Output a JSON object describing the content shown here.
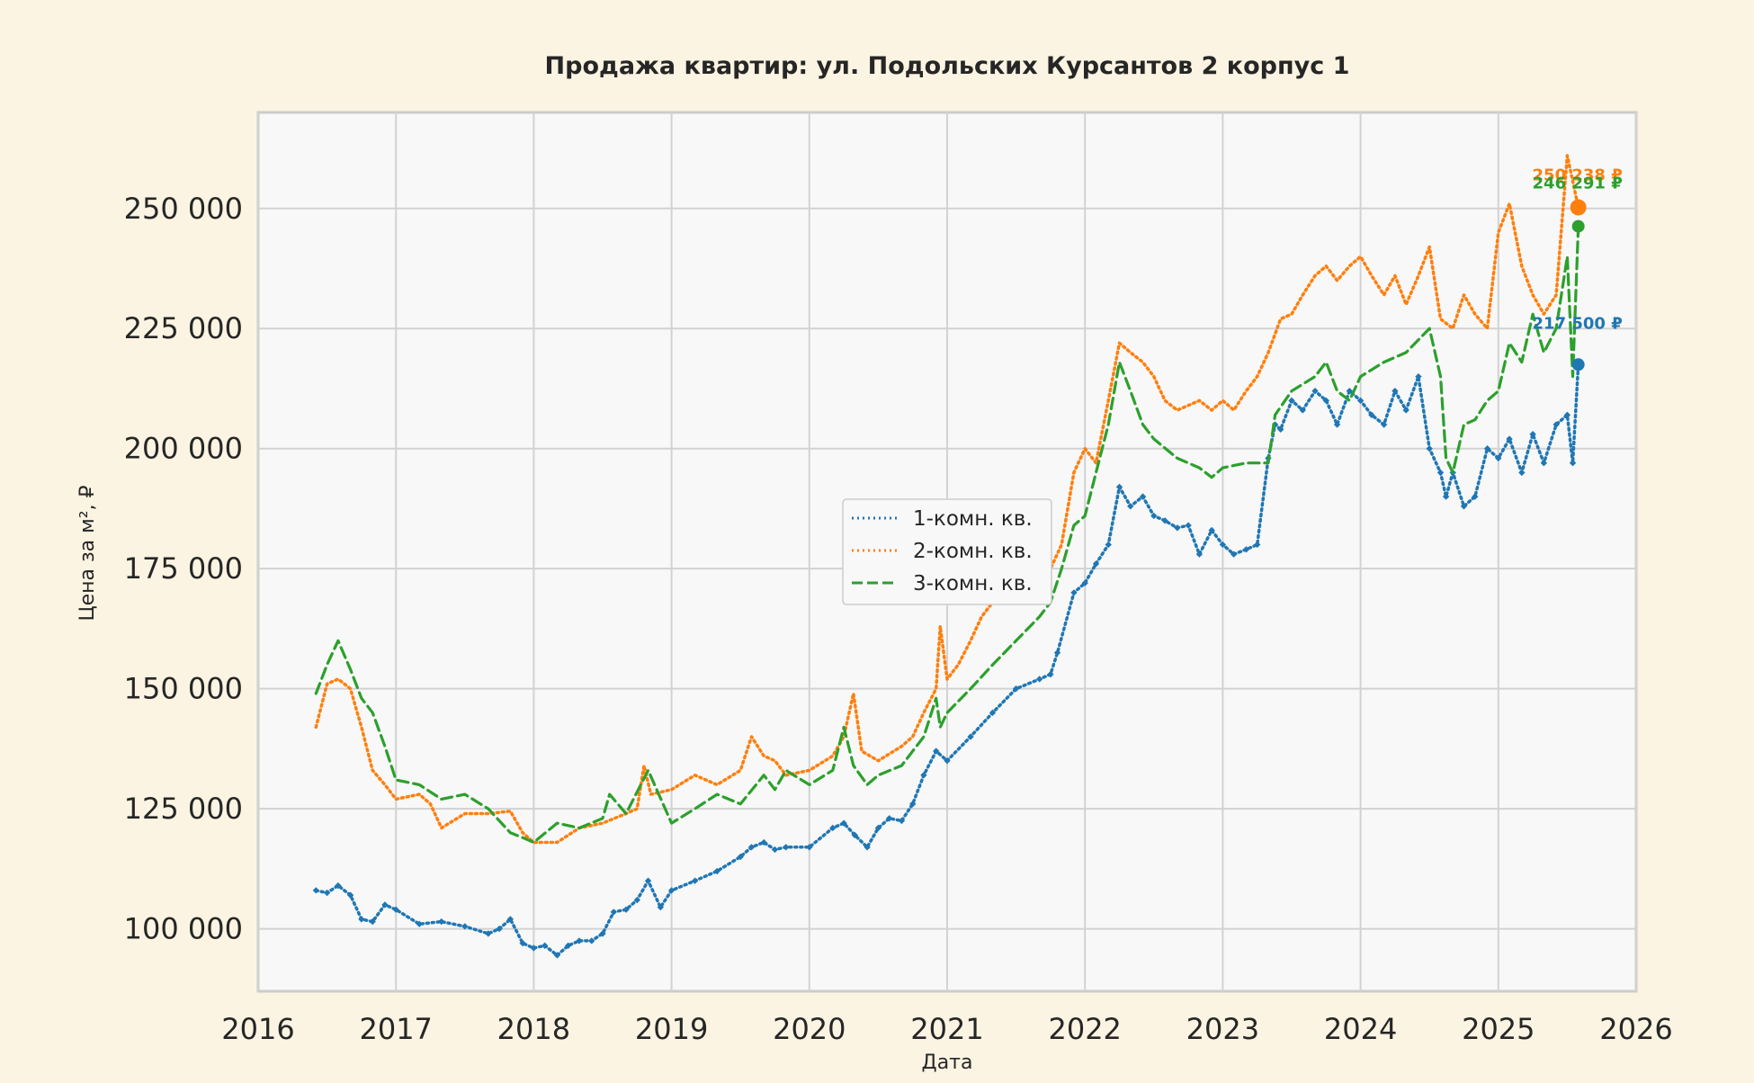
{
  "chart_data": {
    "type": "line",
    "title": "Продажа квартир: ул. Подольских Курсантов 2 корпус 1",
    "xlabel": "Дата",
    "ylabel": "Цена за м², ₽",
    "xlim": [
      2016.0,
      2026.0
    ],
    "ylim": [
      87000,
      270000
    ],
    "x_ticks": [
      "2016",
      "2017",
      "2018",
      "2019",
      "2020",
      "2021",
      "2022",
      "2023",
      "2024",
      "2025",
      "2026"
    ],
    "y_ticks": [
      {
        "value": 100000,
        "label": "100 000"
      },
      {
        "value": 125000,
        "label": "125 000"
      },
      {
        "value": 150000,
        "label": "150 000"
      },
      {
        "value": 175000,
        "label": "175 000"
      },
      {
        "value": 200000,
        "label": "200 000"
      },
      {
        "value": 225000,
        "label": "225 000"
      },
      {
        "value": 250000,
        "label": "250 000"
      }
    ],
    "grid": true,
    "legend": "center",
    "series": [
      {
        "name": "1-комн. кв.",
        "color": "#1f77b4",
        "dash": "dotted-marker",
        "x": [
          2016.42,
          2016.5,
          2016.58,
          2016.67,
          2016.75,
          2016.83,
          2016.92,
          2017.0,
          2017.17,
          2017.33,
          2017.5,
          2017.67,
          2017.75,
          2017.83,
          2017.92,
          2018.0,
          2018.08,
          2018.17,
          2018.25,
          2018.33,
          2018.42,
          2018.5,
          2018.58,
          2018.67,
          2018.75,
          2018.83,
          2018.92,
          2019.0,
          2019.17,
          2019.33,
          2019.5,
          2019.58,
          2019.67,
          2019.75,
          2019.83,
          2020.0,
          2020.17,
          2020.25,
          2020.33,
          2020.42,
          2020.5,
          2020.58,
          2020.67,
          2020.75,
          2020.83,
          2020.92,
          2021.0,
          2021.17,
          2021.33,
          2021.5,
          2021.67,
          2021.75,
          2021.8,
          2021.92,
          2022.0,
          2022.08,
          2022.17,
          2022.25,
          2022.33,
          2022.42,
          2022.5,
          2022.58,
          2022.67,
          2022.75,
          2022.83,
          2022.92,
          2023.0,
          2023.08,
          2023.17,
          2023.25,
          2023.33,
          2023.38,
          2023.42,
          2023.5,
          2023.58,
          2023.67,
          2023.75,
          2023.83,
          2023.92,
          2024.0,
          2024.08,
          2024.17,
          2024.25,
          2024.33,
          2024.42,
          2024.5,
          2024.58,
          2024.62,
          2024.67,
          2024.75,
          2024.83,
          2024.92,
          2025.0,
          2025.08,
          2025.17,
          2025.25,
          2025.33,
          2025.42,
          2025.5,
          2025.54,
          2025.58
        ],
        "y": [
          108000,
          107500,
          109000,
          107000,
          102000,
          101500,
          105000,
          104000,
          101000,
          101500,
          100500,
          99000,
          100000,
          102000,
          97000,
          96000,
          96500,
          94500,
          96500,
          97500,
          97500,
          99000,
          103500,
          104000,
          106000,
          110000,
          104500,
          108000,
          110000,
          112000,
          115000,
          117000,
          118000,
          116500,
          117000,
          117000,
          121000,
          122000,
          119500,
          117000,
          121000,
          123000,
          122500,
          126000,
          132000,
          137000,
          135000,
          140000,
          145000,
          150000,
          152000,
          153000,
          157500,
          170000,
          172000,
          176000,
          180000,
          192000,
          188000,
          190000,
          186000,
          185000,
          183500,
          184000,
          178000,
          183000,
          180000,
          178000,
          179000,
          180000,
          198000,
          205000,
          204000,
          210000,
          208000,
          212000,
          210000,
          205000,
          212000,
          210000,
          207000,
          205000,
          212000,
          208000,
          215000,
          200000,
          195000,
          190000,
          195000,
          188000,
          190000,
          200000,
          198000,
          202000,
          195000,
          203000,
          197000,
          205000,
          207000,
          197000,
          217500
        ]
      },
      {
        "name": "2-комн. кв.",
        "color": "#ff7f0e",
        "dash": "dotted",
        "x": [
          2016.42,
          2016.5,
          2016.58,
          2016.67,
          2016.75,
          2016.83,
          2016.92,
          2017.0,
          2017.17,
          2017.25,
          2017.33,
          2017.5,
          2017.67,
          2017.83,
          2017.92,
          2018.0,
          2018.17,
          2018.33,
          2018.5,
          2018.67,
          2018.75,
          2018.8,
          2018.85,
          2019.0,
          2019.17,
          2019.33,
          2019.5,
          2019.58,
          2019.67,
          2019.75,
          2019.83,
          2020.0,
          2020.17,
          2020.25,
          2020.32,
          2020.38,
          2020.5,
          2020.67,
          2020.75,
          2020.83,
          2020.92,
          2020.95,
          2021.0,
          2021.08,
          2021.17,
          2021.25,
          2021.33,
          2021.5,
          2021.67,
          2021.75,
          2021.83,
          2021.92,
          2022.0,
          2022.08,
          2022.17,
          2022.25,
          2022.33,
          2022.42,
          2022.5,
          2022.58,
          2022.67,
          2022.75,
          2022.83,
          2022.92,
          2023.0,
          2023.08,
          2023.17,
          2023.25,
          2023.33,
          2023.42,
          2023.5,
          2023.58,
          2023.67,
          2023.75,
          2023.83,
          2023.92,
          2024.0,
          2024.08,
          2024.17,
          2024.25,
          2024.33,
          2024.42,
          2024.5,
          2024.58,
          2024.67,
          2024.75,
          2024.83,
          2024.92,
          2025.0,
          2025.08,
          2025.17,
          2025.25,
          2025.33,
          2025.42,
          2025.5,
          2025.58
        ],
        "y": [
          142000,
          151000,
          152000,
          150000,
          142000,
          133000,
          130000,
          127000,
          128000,
          126000,
          121000,
          124000,
          124000,
          124500,
          120000,
          118000,
          118000,
          121000,
          122000,
          124000,
          125000,
          134000,
          128000,
          129000,
          132000,
          130000,
          133000,
          140000,
          136000,
          135000,
          132000,
          133000,
          136000,
          140000,
          149000,
          137000,
          135000,
          138000,
          140000,
          145000,
          150000,
          163000,
          152000,
          155000,
          160000,
          165000,
          168000,
          170000,
          172000,
          175000,
          180000,
          195000,
          200000,
          197000,
          210000,
          222000,
          220000,
          218000,
          215000,
          210000,
          208000,
          209000,
          210000,
          208000,
          210000,
          208000,
          212000,
          215000,
          220000,
          227000,
          228000,
          232000,
          236000,
          238000,
          235000,
          238000,
          240000,
          236000,
          232000,
          236000,
          230000,
          236000,
          242000,
          227000,
          225000,
          232000,
          228000,
          225000,
          245000,
          251000,
          238000,
          232000,
          228000,
          232000,
          261000,
          250238
        ]
      },
      {
        "name": "3-комн. кв.",
        "color": "#2ca02c",
        "dash": "dashed",
        "x": [
          2016.42,
          2016.5,
          2016.58,
          2016.67,
          2016.75,
          2016.83,
          2016.92,
          2017.0,
          2017.17,
          2017.33,
          2017.5,
          2017.67,
          2017.83,
          2017.92,
          2018.0,
          2018.17,
          2018.33,
          2018.5,
          2018.55,
          2018.67,
          2018.83,
          2019.0,
          2019.17,
          2019.33,
          2019.5,
          2019.67,
          2019.75,
          2019.83,
          2020.0,
          2020.17,
          2020.25,
          2020.32,
          2020.42,
          2020.5,
          2020.67,
          2020.83,
          2020.92,
          2020.95,
          2021.0,
          2021.17,
          2021.33,
          2021.5,
          2021.67,
          2021.75,
          2021.83,
          2021.92,
          2022.0,
          2022.08,
          2022.17,
          2022.25,
          2022.33,
          2022.42,
          2022.5,
          2022.67,
          2022.83,
          2022.92,
          2023.0,
          2023.17,
          2023.33,
          2023.38,
          2023.5,
          2023.67,
          2023.75,
          2023.83,
          2023.92,
          2024.0,
          2024.17,
          2024.33,
          2024.5,
          2024.58,
          2024.62,
          2024.67,
          2024.75,
          2024.83,
          2024.92,
          2025.0,
          2025.08,
          2025.17,
          2025.25,
          2025.33,
          2025.42,
          2025.5,
          2025.54,
          2025.58
        ],
        "y": [
          149000,
          155000,
          160000,
          154000,
          148000,
          145000,
          138000,
          131000,
          130000,
          127000,
          128000,
          125000,
          120000,
          119000,
          118000,
          122000,
          121000,
          123000,
          128000,
          124000,
          133000,
          122000,
          125000,
          128000,
          126000,
          132000,
          129000,
          133000,
          130000,
          133000,
          142000,
          134000,
          130000,
          132000,
          134000,
          140000,
          148000,
          142000,
          145000,
          150000,
          155000,
          160000,
          165000,
          168000,
          175000,
          184000,
          186000,
          195000,
          205000,
          218000,
          212000,
          205000,
          202000,
          198000,
          196000,
          194000,
          196000,
          197000,
          197000,
          207000,
          212000,
          215000,
          218000,
          212000,
          210000,
          215000,
          218000,
          220000,
          225000,
          215000,
          198000,
          195000,
          205000,
          206000,
          210000,
          212000,
          222000,
          218000,
          228000,
          220000,
          225000,
          240000,
          215000,
          246291
        ]
      }
    ],
    "end_labels": [
      {
        "series": 0,
        "text": "217 500 ₽",
        "value": 217500
      },
      {
        "series": 1,
        "text": "250 238 ₽",
        "value": 250238
      },
      {
        "series": 2,
        "text": "246 291 ₽",
        "value": 246291
      }
    ]
  }
}
